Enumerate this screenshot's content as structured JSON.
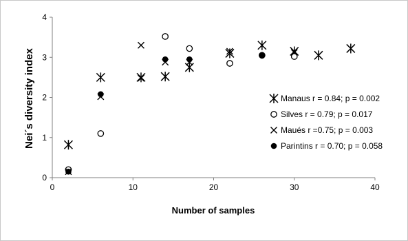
{
  "chart_data": {
    "type": "scatter",
    "title": "",
    "xlabel": "Number of samples",
    "ylabel": "Nei´s diversity index",
    "xlim": [
      0,
      40
    ],
    "ylim": [
      0,
      4
    ],
    "x_ticks": [
      "0",
      "10",
      "20",
      "30",
      "40"
    ],
    "y_ticks": [
      "0",
      "1",
      "2",
      "3",
      "4"
    ],
    "grid": false,
    "legend_position": "right",
    "series": [
      {
        "name": "Manaus r = 0.84; p = 0.002",
        "marker": "asterisk",
        "color": "#000000",
        "points": [
          [
            2,
            0.82
          ],
          [
            6,
            2.5
          ],
          [
            11,
            2.5
          ],
          [
            14,
            2.52
          ],
          [
            17,
            2.75
          ],
          [
            22,
            3.1
          ],
          [
            26,
            3.3
          ],
          [
            30,
            3.15
          ],
          [
            33,
            3.05
          ],
          [
            37,
            3.22
          ]
        ]
      },
      {
        "name": "Silves r = 0.79; p = 0.017",
        "marker": "circle-open",
        "color": "#000000",
        "points": [
          [
            2,
            0.2
          ],
          [
            6,
            1.1
          ],
          [
            14,
            3.52
          ],
          [
            17,
            3.22
          ],
          [
            22,
            2.85
          ],
          [
            26,
            3.05
          ],
          [
            30,
            3.02
          ]
        ]
      },
      {
        "name": "Maués r =0.75; p = 0.003",
        "marker": "x",
        "color": "#000000",
        "points": [
          [
            2,
            0.15
          ],
          [
            6,
            2.02
          ],
          [
            11,
            3.3
          ],
          [
            11,
            2.48
          ],
          [
            14,
            2.88
          ],
          [
            17,
            2.88
          ],
          [
            22,
            3.15
          ],
          [
            30,
            3.12
          ]
        ]
      },
      {
        "name": "Parintins r = 0.70; p = 0.058",
        "marker": "circle-filled",
        "color": "#000000",
        "points": [
          [
            2,
            0.15
          ],
          [
            6,
            2.08
          ],
          [
            14,
            2.95
          ],
          [
            17,
            2.95
          ],
          [
            26,
            3.05
          ]
        ]
      }
    ]
  }
}
